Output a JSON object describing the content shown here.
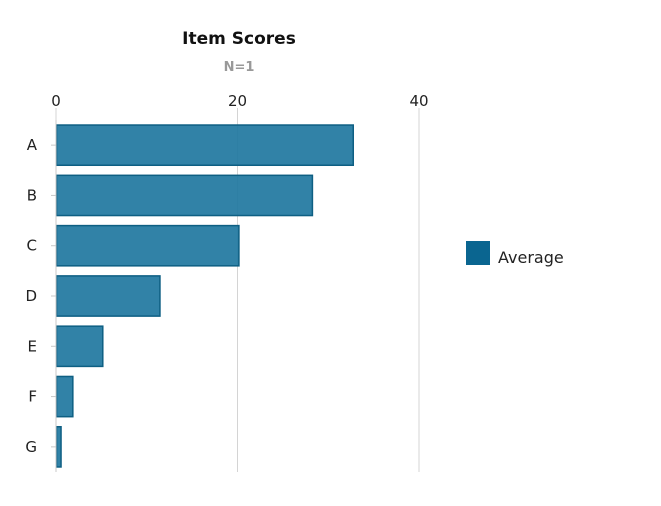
{
  "chart_data": {
    "type": "bar",
    "orientation": "horizontal",
    "title": "Item Scores",
    "subtitle": "N=1",
    "categories": [
      "A",
      "B",
      "C",
      "D",
      "E",
      "F",
      "G"
    ],
    "series": [
      {
        "name": "Average",
        "values": [
          32.7,
          28.2,
          20.1,
          11.4,
          5.1,
          1.8,
          0.5
        ]
      }
    ],
    "xlim": [
      0,
      40
    ],
    "xticks": [
      0,
      20,
      40
    ],
    "x_axis_position": "top",
    "grid": true,
    "legend_position": "right",
    "colors": {
      "bar_fill": "#1f77a0",
      "bar_stroke": "#0e5f83",
      "legend_swatch": "#0a6590"
    }
  }
}
